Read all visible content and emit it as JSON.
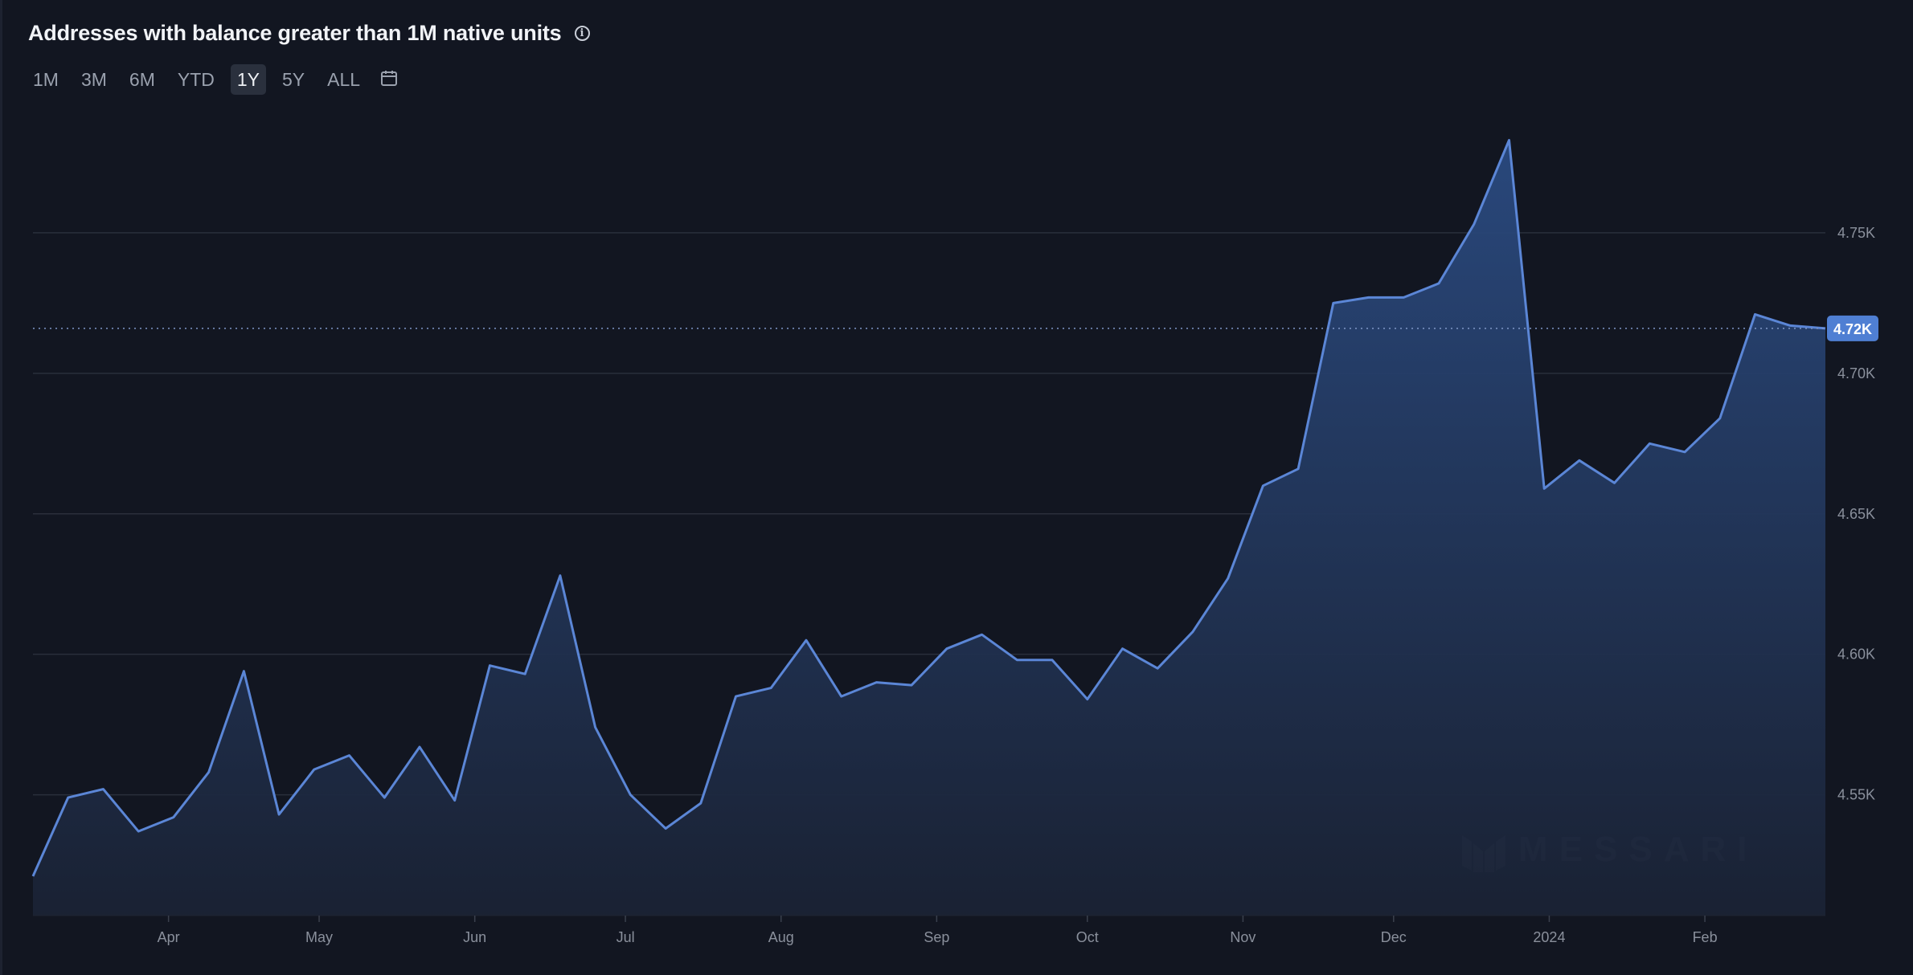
{
  "header": {
    "title": "Addresses with balance greater than 1M native units",
    "info_icon": "info-icon"
  },
  "ranges": [
    {
      "label": "1M",
      "active": false
    },
    {
      "label": "3M",
      "active": false
    },
    {
      "label": "6M",
      "active": false
    },
    {
      "label": "YTD",
      "active": false
    },
    {
      "label": "1Y",
      "active": true
    },
    {
      "label": "5Y",
      "active": false
    },
    {
      "label": "ALL",
      "active": false
    }
  ],
  "calendar_icon": "calendar-icon",
  "watermark": "MESSARI",
  "colors": {
    "line": "#5b86d6",
    "badge": "#4f7fd3",
    "background": "#121621",
    "grid": "#2a2f3b"
  },
  "chart_data": {
    "type": "area",
    "title": "Addresses with balance greater than 1M native units",
    "xlabel": "",
    "ylabel": "",
    "x_tick_labels": [
      "Apr",
      "May",
      "Jun",
      "Jul",
      "Aug",
      "Sep",
      "Oct",
      "Nov",
      "Dec",
      "2024",
      "Feb"
    ],
    "y_tick_labels": [
      "4.55K",
      "4.60K",
      "4.65K",
      "4.70K",
      "4.75K"
    ],
    "y_ticks": [
      4550,
      4600,
      4650,
      4700,
      4750
    ],
    "ylim": [
      4507,
      4790
    ],
    "current_value_label": "4.72K",
    "current_value": 4716,
    "grid": true,
    "x": [
      "2023-03-05",
      "2023-03-12",
      "2023-03-19",
      "2023-03-26",
      "2023-04-02",
      "2023-04-09",
      "2023-04-16",
      "2023-04-23",
      "2023-04-30",
      "2023-05-07",
      "2023-05-14",
      "2023-05-21",
      "2023-05-28",
      "2023-06-04",
      "2023-06-11",
      "2023-06-18",
      "2023-06-25",
      "2023-07-02",
      "2023-07-09",
      "2023-07-16",
      "2023-07-23",
      "2023-07-30",
      "2023-08-06",
      "2023-08-13",
      "2023-08-20",
      "2023-08-27",
      "2023-09-03",
      "2023-09-10",
      "2023-09-17",
      "2023-09-24",
      "2023-10-01",
      "2023-10-08",
      "2023-10-15",
      "2023-10-22",
      "2023-10-29",
      "2023-11-05",
      "2023-11-12",
      "2023-11-19",
      "2023-11-26",
      "2023-12-03",
      "2023-12-10",
      "2023-12-17",
      "2023-12-24",
      "2023-12-31",
      "2024-01-07",
      "2024-01-14",
      "2024-01-21",
      "2024-01-28",
      "2024-02-04",
      "2024-02-11",
      "2024-02-18",
      "2024-02-25"
    ],
    "series": [
      {
        "values": [
          4521,
          4549,
          4552,
          4537,
          4542,
          4558,
          4594,
          4543,
          4559,
          4564,
          4549,
          4567,
          4548,
          4596,
          4593,
          4628,
          4574,
          4550,
          4538,
          4547,
          4585,
          4588,
          4605,
          4585,
          4590,
          4589,
          4602,
          4607,
          4598,
          4598,
          4584,
          4602,
          4595,
          4608,
          4627,
          4660,
          4666,
          4725,
          4727,
          4727,
          4732,
          4753,
          4783,
          4659,
          4669,
          4661,
          4675,
          4672,
          4684,
          4721,
          4717,
          4716
        ]
      }
    ]
  }
}
